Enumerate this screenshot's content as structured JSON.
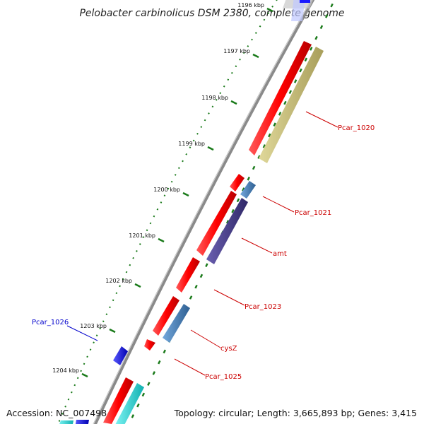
{
  "title": "Pelobacter carbinolicus DSM 2380, complete genome",
  "footer": {
    "accession": "Accession: NC_007498",
    "summary": "Topology: circular; Length: 3,665,893 bp; Genes: 3,415"
  },
  "colors": {
    "backbone": "#8a8a8a",
    "forward_cds": "#ff1a1a",
    "reverse_blue": "#1a1aff",
    "cyan": "#1fe0e0",
    "khaki": "#c8c080",
    "steel": "#4a86c0",
    "purple": "#4a3f8c",
    "tick_green": "#1a7a1a",
    "label_red": "#cc0000",
    "label_blue": "#0000cc"
  },
  "ticks": [
    {
      "label": "1196 kbp",
      "kbp": 1196
    },
    {
      "label": "1197 kbp",
      "kbp": 1197
    },
    {
      "label": "1198 kbp",
      "kbp": 1198
    },
    {
      "label": "1199 kbp",
      "kbp": 1199
    },
    {
      "label": "1200 kbp",
      "kbp": 1200
    },
    {
      "label": "1201 kbp",
      "kbp": 1201
    },
    {
      "label": "1202 kbp",
      "kbp": 1202
    },
    {
      "label": "1203 kbp",
      "kbp": 1203
    },
    {
      "label": "1204 kbp",
      "kbp": 1204
    }
  ],
  "gene_labels": [
    {
      "name": "Pcar_1020",
      "color": "label_red"
    },
    {
      "name": "Pcar_1021",
      "color": "label_red"
    },
    {
      "name": "amt",
      "color": "label_red"
    },
    {
      "name": "Pcar_1023",
      "color": "label_red"
    },
    {
      "name": "cysZ",
      "color": "label_red"
    },
    {
      "name": "Pcar_1025",
      "color": "label_red"
    },
    {
      "name": "Pcar_1026",
      "color": "label_blue"
    }
  ]
}
